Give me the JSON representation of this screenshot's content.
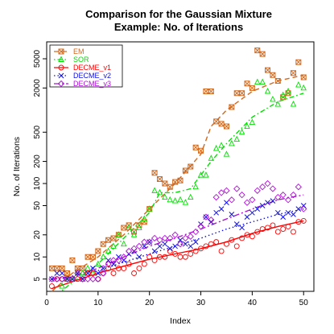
{
  "chart_data": {
    "type": "scatter",
    "title_line1": "Comparison for the Gaussian Mixture",
    "title_line2": "Example: No. of Iterations",
    "xlabel": "Index",
    "ylabel": "No. of Iterations",
    "xlim": [
      0,
      52
    ],
    "ylim": [
      3.4,
      8500
    ],
    "yscale": "log",
    "x_ticks": [
      0,
      10,
      20,
      30,
      40,
      50
    ],
    "y_ticks": [
      5,
      10,
      20,
      50,
      100,
      200,
      500,
      2000,
      5000
    ],
    "grid": false,
    "legend_position": "top-left",
    "series": [
      {
        "name": "EM",
        "color": "#d2691e",
        "marker": "x-box",
        "line": "dashed",
        "x": [
          1,
          2,
          3,
          4,
          5,
          6,
          7,
          8,
          9,
          10,
          11,
          12,
          13,
          14,
          15,
          16,
          17,
          18,
          19,
          20,
          21,
          22,
          23,
          24,
          25,
          26,
          27,
          28,
          29,
          30,
          31,
          32,
          33,
          34,
          35,
          36,
          37,
          38,
          39,
          40,
          41,
          42,
          43,
          44,
          45,
          46,
          47,
          48,
          49,
          50
        ],
        "y": [
          7,
          7,
          7,
          6,
          9,
          7,
          7,
          10,
          10,
          12,
          15,
          17,
          18,
          20,
          25,
          27,
          22,
          27,
          30,
          45,
          140,
          115,
          100,
          90,
          105,
          110,
          150,
          170,
          310,
          280,
          1800,
          1800,
          700,
          650,
          600,
          1100,
          1700,
          1700,
          2300,
          2000,
          6500,
          5800,
          3500,
          3000,
          2500,
          1500,
          1700,
          3200,
          4500,
          2800
        ],
        "fit_x": [
          1,
          5,
          10,
          15,
          20,
          25,
          30,
          32,
          35,
          40,
          45,
          50
        ],
        "fit_y": [
          2.5,
          6,
          10,
          20,
          45,
          100,
          250,
          600,
          1000,
          1800,
          2500,
          3000
        ]
      },
      {
        "name": "SOR",
        "color": "#00e000",
        "marker": "triangle",
        "line": "dotdash",
        "x": [
          3,
          4,
          5,
          6,
          7,
          8,
          9,
          10,
          11,
          12,
          13,
          14,
          15,
          16,
          17,
          18,
          19,
          20,
          21,
          22,
          23,
          24,
          25,
          26,
          27,
          28,
          29,
          30,
          31,
          32,
          33,
          34,
          35,
          36,
          37,
          38,
          39,
          40,
          41,
          42,
          43,
          44,
          45,
          46,
          47,
          48,
          49,
          50
        ],
        "y": [
          4,
          5,
          5,
          6,
          6,
          7,
          6,
          8,
          10,
          12,
          14,
          20,
          15,
          25,
          20,
          25,
          33,
          45,
          80,
          75,
          65,
          60,
          58,
          60,
          55,
          65,
          90,
          130,
          130,
          220,
          300,
          330,
          250,
          350,
          400,
          500,
          600,
          680,
          2400,
          2400,
          1800,
          1400,
          1200,
          1600,
          1800,
          1200,
          2200,
          2000
        ],
        "fit_x": [
          3,
          5,
          10,
          15,
          20,
          22,
          25,
          28,
          30,
          32,
          35,
          40,
          45,
          50
        ],
        "fit_y": [
          3.5,
          4.5,
          8,
          18,
          40,
          75,
          75,
          85,
          130,
          200,
          350,
          800,
          1300,
          1700
        ]
      },
      {
        "name": "DECME_v1",
        "color": "#ff0000",
        "marker": "circle",
        "line": "solid",
        "x": [
          1,
          2,
          3,
          4,
          5,
          6,
          7,
          8,
          9,
          10,
          11,
          12,
          13,
          14,
          15,
          16,
          17,
          18,
          19,
          20,
          21,
          22,
          23,
          24,
          25,
          26,
          27,
          28,
          29,
          30,
          31,
          32,
          33,
          34,
          35,
          36,
          37,
          38,
          39,
          40,
          41,
          42,
          43,
          44,
          45,
          46,
          47,
          48,
          49,
          50
        ],
        "y": [
          4,
          5,
          5,
          5,
          5,
          5,
          5,
          6,
          6,
          5,
          6,
          7,
          6,
          7,
          7,
          8,
          6,
          7,
          8,
          10,
          9,
          10,
          10,
          12,
          11,
          10,
          10,
          11,
          12,
          13,
          14,
          15,
          16,
          12,
          15,
          17,
          14,
          18,
          20,
          19,
          22,
          24,
          25,
          27,
          22,
          24,
          26,
          22,
          30,
          31
        ],
        "fit_x": [
          1,
          5,
          10,
          15,
          20,
          25,
          30,
          35,
          40,
          45,
          50
        ],
        "fit_y": [
          3.7,
          4.6,
          6,
          7.5,
          9.3,
          11,
          13,
          16,
          21,
          26,
          31
        ]
      },
      {
        "name": "DECME_v2",
        "color": "#1010e0",
        "marker": "x",
        "line": "dotted",
        "x": [
          1,
          2,
          3,
          4,
          5,
          6,
          7,
          8,
          9,
          10,
          11,
          12,
          13,
          14,
          15,
          16,
          17,
          18,
          19,
          20,
          21,
          22,
          23,
          24,
          25,
          26,
          27,
          28,
          29,
          30,
          31,
          32,
          33,
          34,
          35,
          36,
          37,
          38,
          39,
          40,
          41,
          42,
          43,
          44,
          45,
          46,
          47,
          48,
          49,
          50
        ],
        "y": [
          5,
          6,
          6,
          5,
          5,
          6,
          5,
          6,
          7,
          6,
          7,
          9,
          8,
          10,
          9,
          11,
          12,
          10,
          14,
          16,
          12,
          14,
          15,
          13,
          14,
          17,
          15,
          14,
          16,
          28,
          35,
          30,
          40,
          45,
          55,
          38,
          28,
          25,
          35,
          40,
          45,
          50,
          55,
          58,
          40,
          35,
          40,
          38,
          45,
          50
        ],
        "fit_x": [
          1,
          5,
          10,
          15,
          20,
          25,
          30,
          35,
          40,
          45,
          50
        ],
        "fit_y": [
          4.9,
          5.3,
          6.5,
          8.5,
          11,
          14,
          18,
          24,
          30,
          38,
          45
        ]
      },
      {
        "name": "DECME_v3",
        "color": "#b010d8",
        "marker": "diamond",
        "line": "dashdot",
        "x": [
          1,
          2,
          3,
          4,
          5,
          6,
          7,
          8,
          9,
          10,
          11,
          12,
          13,
          14,
          15,
          16,
          17,
          18,
          19,
          20,
          21,
          22,
          23,
          24,
          25,
          26,
          27,
          28,
          29,
          30,
          31,
          32,
          33,
          34,
          35,
          36,
          37,
          38,
          39,
          40,
          41,
          42,
          43,
          44,
          45,
          46,
          47,
          48,
          49,
          50
        ],
        "y": [
          5,
          5,
          5,
          5,
          5,
          6,
          5,
          5,
          5,
          5,
          6,
          8,
          9,
          9,
          10,
          12,
          13,
          14,
          16,
          16,
          18,
          17,
          18,
          18,
          20,
          15,
          18,
          19,
          22,
          26,
          35,
          32,
          65,
          75,
          80,
          60,
          85,
          70,
          55,
          60,
          80,
          90,
          100,
          85,
          65,
          70,
          60,
          70,
          90,
          45
        ],
        "fit_x": [
          1,
          5,
          10,
          15,
          20,
          25,
          30,
          35,
          40,
          45,
          50
        ],
        "fit_y": [
          5,
          5.5,
          7,
          10,
          14,
          18,
          24,
          33,
          45,
          60,
          70
        ]
      }
    ]
  }
}
